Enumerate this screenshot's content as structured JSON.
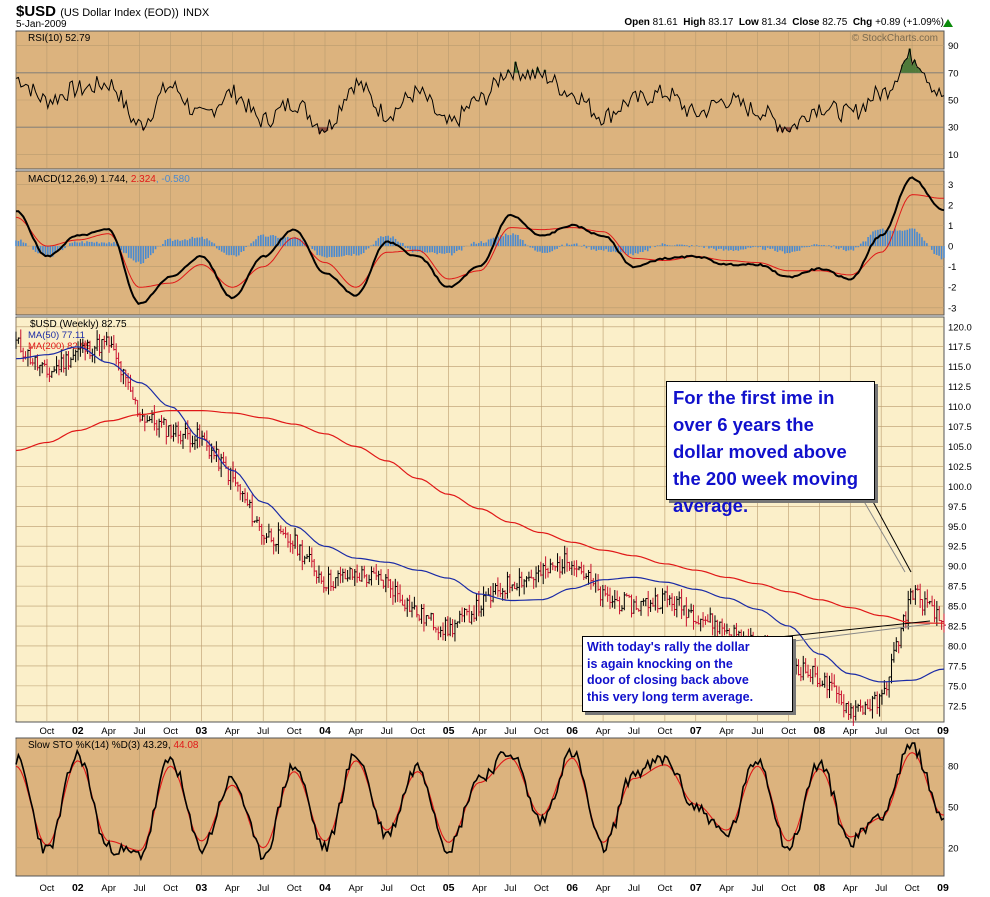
{
  "header": {
    "symbol": "$USD",
    "name": "(US Dollar Index (EOD))",
    "exchange": "INDX",
    "date": "5-Jan-2009",
    "open_label": "Open",
    "open": "81.61",
    "high_label": "High",
    "high": "83.17",
    "low_label": "Low",
    "low": "81.34",
    "close_label": "Close",
    "close": "82.75",
    "chg_label": "Chg",
    "chg": "+0.89 (+1.09%)",
    "watermark": "© StockCharts.com"
  },
  "panels": {
    "rsi": {
      "label": "RSI(10) 52.79",
      "ticks": [
        "90",
        "70",
        "50",
        "30",
        "10"
      ]
    },
    "macd": {
      "label_main": "MACD(12,26,9) 1.744, ",
      "label_signal": "2.324",
      "label_hist": ", -0.580",
      "ticks": [
        "3",
        "2",
        "1",
        "0",
        "-1",
        "-2",
        "-3"
      ]
    },
    "price": {
      "label": "$USD (Weekly) 82.75",
      "ma50": "MA(50) 77.11",
      "ma200": "MA(200) 82.85",
      "ticks": [
        "120.0",
        "117.5",
        "115.0",
        "112.5",
        "110.0",
        "107.5",
        "105.0",
        "102.5",
        "100.0",
        "97.5",
        "95.0",
        "92.5",
        "90.0",
        "87.5",
        "85.0",
        "82.5",
        "80.0",
        "77.5",
        "75.0",
        "72.5"
      ]
    },
    "sto": {
      "label_main": "Slow STO %K(14) %D(3) 43.29, ",
      "label_d": "44.08",
      "ticks": [
        "80",
        "50",
        "20"
      ]
    }
  },
  "x_axis_labels": [
    "Oct",
    "02",
    "Apr",
    "Jul",
    "Oct",
    "03",
    "Apr",
    "Jul",
    "Oct",
    "04",
    "Apr",
    "Jul",
    "Oct",
    "05",
    "Apr",
    "Jul",
    "Oct",
    "06",
    "Apr",
    "Jul",
    "Oct",
    "07",
    "Apr",
    "Jul",
    "Oct",
    "08",
    "Apr",
    "Jul",
    "Oct",
    "09"
  ],
  "annotations": {
    "callout1": [
      "For the first ime in",
      "over 6 years the",
      "dollar moved above",
      "the 200 week moving",
      "average."
    ],
    "callout2": [
      "With today's rally the dollar",
      "is again knocking on the",
      "door of closing back above",
      "this very long term average."
    ]
  },
  "colors": {
    "panel_bg": "#dcb37e",
    "price_bg": "#fbefc9",
    "ma50": "#1a2aa6",
    "ma200": "#e01818",
    "up_bar": "#000000",
    "down_bar": "#c8102e",
    "macd_hist": "#4a8ad0",
    "callout_text": "#1010cc"
  },
  "chart_data": [
    {
      "type": "line",
      "title": "RSI(10) 52.79",
      "ylim": [
        0,
        100
      ],
      "x": [
        "2001-07",
        "2001-10",
        "2002-01",
        "2002-04",
        "2002-07",
        "2002-10",
        "2003-01",
        "2003-04",
        "2003-07",
        "2003-10",
        "2004-01",
        "2004-04",
        "2004-07",
        "2004-10",
        "2005-01",
        "2005-04",
        "2005-07",
        "2005-10",
        "2006-01",
        "2006-04",
        "2006-07",
        "2006-10",
        "2007-01",
        "2007-04",
        "2007-07",
        "2007-10",
        "2008-01",
        "2008-04",
        "2008-07",
        "2008-10",
        "2009-01"
      ],
      "series": [
        {
          "values": [
            66,
            50,
            58,
            62,
            32,
            60,
            38,
            55,
            35,
            48,
            30,
            62,
            40,
            55,
            32,
            50,
            72,
            68,
            55,
            38,
            50,
            55,
            40,
            50,
            42,
            30,
            45,
            40,
            55,
            82,
            53
          ]
        }
      ]
    },
    {
      "type": "line",
      "title": "MACD(12,26,9)",
      "ylim": [
        -3,
        3.5
      ],
      "x": [
        "2001-07",
        "2001-10",
        "2002-01",
        "2002-04",
        "2002-07",
        "2002-10",
        "2003-01",
        "2003-04",
        "2003-07",
        "2003-10",
        "2004-01",
        "2004-04",
        "2004-07",
        "2004-10",
        "2005-01",
        "2005-04",
        "2005-07",
        "2005-10",
        "2006-01",
        "2006-04",
        "2006-07",
        "2006-10",
        "2007-01",
        "2007-04",
        "2007-07",
        "2007-10",
        "2008-01",
        "2008-04",
        "2008-07",
        "2008-10",
        "2009-01"
      ],
      "series": [
        {
          "values": [
            1.7,
            -0.5,
            0.5,
            0.8,
            -2.8,
            -1.5,
            -0.5,
            -2.5,
            -0.5,
            0.8,
            -1.3,
            -2.4,
            0.2,
            -0.5,
            -2.0,
            -1.0,
            1.5,
            0.5,
            1.0,
            0.5,
            -1.0,
            -0.6,
            -0.5,
            -0.9,
            -0.9,
            -1.5,
            -1.1,
            -1.6,
            0.5,
            3.3,
            1.74
          ]
        },
        {
          "values": [
            1.4,
            0.0,
            0.3,
            0.6,
            -2.0,
            -1.8,
            -0.9,
            -2.0,
            -1.0,
            0.4,
            -0.8,
            -2.0,
            -0.3,
            -0.2,
            -1.6,
            -1.2,
            0.9,
            0.8,
            0.9,
            0.7,
            -0.6,
            -0.7,
            -0.5,
            -0.7,
            -0.8,
            -1.2,
            -1.2,
            -1.4,
            -0.3,
            2.5,
            2.32
          ]
        },
        {
          "values": [
            0.3,
            -0.5,
            0.2,
            0.2,
            -0.8,
            0.3,
            0.4,
            -0.5,
            0.5,
            0.4,
            -0.5,
            -0.4,
            0.5,
            -0.3,
            -0.4,
            0.2,
            0.6,
            -0.3,
            0.1,
            -0.2,
            -0.4,
            0.1,
            0.0,
            -0.2,
            -0.1,
            -0.3,
            0.1,
            -0.2,
            0.8,
            0.8,
            -0.58
          ]
        }
      ]
    },
    {
      "type": "line",
      "title": "$USD (Weekly) 82.75",
      "ylim": [
        70.5,
        121
      ],
      "x": [
        "2001-07",
        "2001-10",
        "2002-01",
        "2002-04",
        "2002-07",
        "2002-10",
        "2003-01",
        "2003-04",
        "2003-07",
        "2003-10",
        "2004-01",
        "2004-04",
        "2004-07",
        "2004-10",
        "2005-01",
        "2005-04",
        "2005-07",
        "2005-10",
        "2006-01",
        "2006-04",
        "2006-07",
        "2006-10",
        "2007-01",
        "2007-04",
        "2007-07",
        "2007-10",
        "2008-01",
        "2008-04",
        "2008-07",
        "2008-10",
        "2009-01"
      ],
      "series": [
        {
          "name": "$USD (Weekly)",
          "values": [
            118,
            114,
            117,
            118,
            109,
            107,
            106,
            101,
            94,
            93,
            88,
            89,
            88,
            84,
            82,
            85,
            88,
            89,
            91,
            86,
            85,
            86,
            84,
            82,
            80,
            78,
            76,
            72,
            73,
            87,
            82.75
          ]
        },
        {
          "name": "MA(50)",
          "values": [
            116,
            116.5,
            117.5,
            115.5,
            113,
            110,
            106,
            102,
            98,
            95,
            92.5,
            91,
            90.5,
            89.5,
            88.5,
            86.5,
            85.7,
            85.8,
            87.2,
            88.3,
            88.6,
            88.0,
            87.1,
            86.0,
            84.6,
            82.5,
            79.0,
            76.5,
            75.5,
            75.7,
            77.1
          ]
        },
        {
          "name": "MA(200)",
          "values": [
            104.5,
            105.5,
            107,
            108.2,
            109.0,
            109.5,
            109.5,
            109.2,
            108.6,
            107.8,
            106.6,
            105.0,
            103.2,
            101.0,
            99.0,
            97.2,
            95.5,
            94.2,
            93.0,
            92.0,
            91.3,
            90.3,
            89.5,
            88.6,
            87.8,
            86.8,
            85.8,
            84.8,
            83.8,
            82.9,
            82.85
          ]
        }
      ]
    },
    {
      "type": "line",
      "title": "Slow STO %K(14) %D(3) 43.29, 44.08",
      "ylim": [
        0,
        100
      ],
      "x": [
        "2001-07",
        "2001-10",
        "2002-01",
        "2002-04",
        "2002-07",
        "2002-10",
        "2003-01",
        "2003-04",
        "2003-07",
        "2003-10",
        "2004-01",
        "2004-04",
        "2004-07",
        "2004-10",
        "2005-01",
        "2005-04",
        "2005-07",
        "2005-10",
        "2006-01",
        "2006-04",
        "2006-07",
        "2006-10",
        "2007-01",
        "2007-04",
        "2007-07",
        "2007-10",
        "2008-01",
        "2008-04",
        "2008-07",
        "2008-10",
        "2009-01"
      ],
      "series": [
        {
          "values": [
            85,
            18,
            88,
            20,
            15,
            85,
            20,
            70,
            15,
            80,
            20,
            88,
            30,
            80,
            20,
            72,
            90,
            40,
            90,
            20,
            75,
            85,
            50,
            30,
            85,
            20,
            82,
            25,
            45,
            95,
            43.29
          ]
        },
        {
          "values": [
            80,
            22,
            84,
            25,
            18,
            80,
            25,
            66,
            20,
            76,
            25,
            84,
            33,
            76,
            24,
            68,
            86,
            44,
            86,
            24,
            71,
            81,
            52,
            33,
            80,
            25,
            78,
            28,
            42,
            90,
            44.08
          ]
        }
      ]
    }
  ]
}
